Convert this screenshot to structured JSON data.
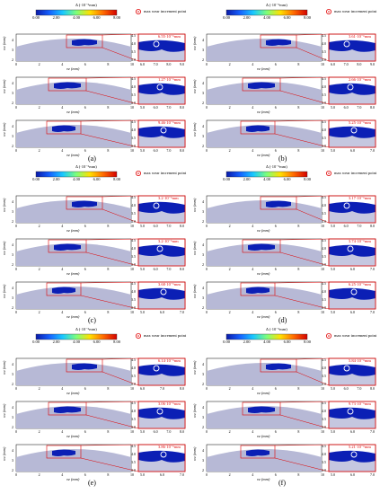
{
  "colorbar": {
    "title": "Δ (·10⁻⁶mm)",
    "ticks": [
      "0.00",
      "2.00",
      "4.00",
      "6.00",
      "8.00"
    ],
    "colors": [
      "#0a1aa8",
      "#1560ff",
      "#19c8ff",
      "#7dff7a",
      "#ffe000",
      "#ff6a00",
      "#d40000"
    ]
  },
  "legend_label": "max wear increment point",
  "axes": {
    "ylabel": "wz (mm)",
    "xlabel": "vz (mm)",
    "main_xticks": [
      "0",
      "2",
      "4",
      "6",
      "8",
      "10"
    ],
    "main_yticks": [
      "2",
      "3",
      "4"
    ],
    "zoom_yticks": [
      "4.5",
      "4.0",
      "3.5",
      "3.0"
    ]
  },
  "panels": [
    {
      "label": "(a)",
      "rows": [
        {
          "annotation": "6.55·10⁻⁶mm",
          "zoom_xticks": [
            "6.0",
            "7.0",
            "8.0",
            "9.0"
          ]
        },
        {
          "annotation": "1.27·10⁻⁶mm",
          "zoom_xticks": [
            "5.0",
            "6.0",
            "7.0",
            "8.0"
          ]
        },
        {
          "annotation": "9.46·10⁻⁶mm",
          "zoom_xticks": [
            "5.0",
            "6.0",
            "7.0",
            "8.0"
          ]
        }
      ]
    },
    {
      "label": "(b)",
      "rows": [
        {
          "annotation": "3.61·10⁻⁶mm",
          "zoom_xticks": [
            "6.0",
            "7.0",
            "8.0",
            "9.0"
          ]
        },
        {
          "annotation": "2.66·10⁻⁶mm",
          "zoom_xticks": [
            "5.0",
            "6.0",
            "7.0",
            "8.0"
          ]
        },
        {
          "annotation": "5.25·10⁻⁶mm",
          "zoom_xticks": [
            "5.0",
            "6.0",
            "7.0"
          ]
        }
      ]
    },
    {
      "label": "(c)",
      "rows": [
        {
          "annotation": "3.2·10⁻⁶mm",
          "zoom_xticks": [
            "5.0",
            "6.0",
            "7.0",
            "8.0"
          ]
        },
        {
          "annotation": "3.2·10⁻⁶mm",
          "zoom_xticks": [
            "5.0",
            "6.0",
            "7.0",
            "8.0"
          ]
        },
        {
          "annotation": "3.68·10⁻⁶mm",
          "zoom_xticks": [
            "5.0",
            "6.0",
            "7.0"
          ]
        }
      ]
    },
    {
      "label": "(d)",
      "rows": [
        {
          "annotation": "3.17·10⁻⁶mm",
          "zoom_xticks": [
            "5.0",
            "6.0",
            "7.0",
            "8.0"
          ]
        },
        {
          "annotation": "3.74·10⁻⁶mm",
          "zoom_xticks": [
            "5.0",
            "6.0",
            "7.0"
          ]
        },
        {
          "annotation": "6.25·10⁻⁶mm",
          "zoom_xticks": [
            "5.0",
            "6.0",
            "7.0"
          ]
        }
      ]
    },
    {
      "label": "(e)",
      "rows": [
        {
          "annotation": "6.14·10⁻⁶mm",
          "zoom_xticks": [
            "6.0",
            "7.0",
            "8.0"
          ]
        },
        {
          "annotation": "3.06·10⁻⁶mm",
          "zoom_xticks": [
            "5.0",
            "6.0",
            "7.0",
            "8.0"
          ]
        },
        {
          "annotation": "3.86·10⁻⁶mm",
          "zoom_xticks": [
            "5.0",
            "6.0",
            "7.0"
          ]
        }
      ]
    },
    {
      "label": "(f)",
      "rows": [
        {
          "annotation": "5.84·10⁻⁶mm",
          "zoom_xticks": [
            "5.0",
            "6.0",
            "7.0",
            "8.0"
          ]
        },
        {
          "annotation": "9.73·10⁻⁶mm",
          "zoom_xticks": [
            "5.0",
            "6.0",
            "7.0"
          ]
        },
        {
          "annotation": "5.21·10⁻⁶mm",
          "zoom_xticks": [
            "5.0",
            "6.0",
            "7.0"
          ]
        }
      ]
    }
  ]
}
